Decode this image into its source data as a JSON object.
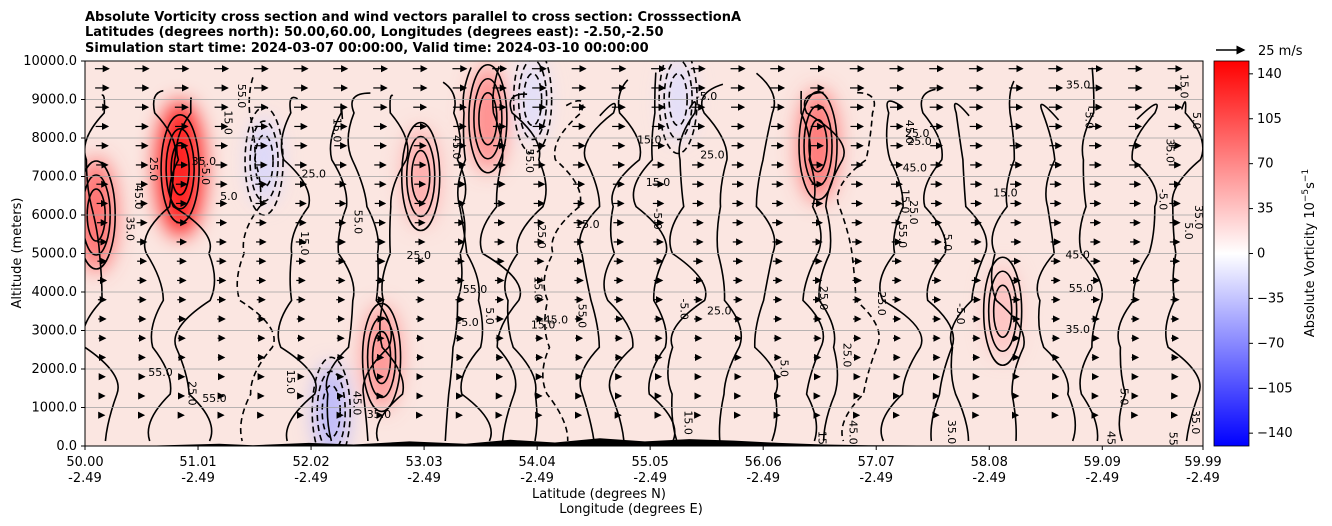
{
  "chart_data": {
    "type": "heatmap",
    "title_lines": [
      "Absolute Vorticity cross section and wind vectors parallel to cross section: CrosssectionA",
      "Latitudes (degrees north): 50.00,60.00, Longitudes (degrees east): -2.50,-2.50",
      "Simulation start time: 2024-03-07 00:00:00, Valid time: 2024-03-10 00:00:00"
    ],
    "xlabel_line1": "Latitude (degrees N)",
    "xlabel_line2": "Longitude (degrees E)",
    "ylabel": "Altitude (meters)",
    "x_ticks": [
      {
        "lat": "50.00",
        "lon": "-2.49"
      },
      {
        "lat": "51.01",
        "lon": "-2.49"
      },
      {
        "lat": "52.02",
        "lon": "-2.49"
      },
      {
        "lat": "53.03",
        "lon": "-2.49"
      },
      {
        "lat": "54.04",
        "lon": "-2.49"
      },
      {
        "lat": "55.05",
        "lon": "-2.49"
      },
      {
        "lat": "56.06",
        "lon": "-2.49"
      },
      {
        "lat": "57.07",
        "lon": "-2.49"
      },
      {
        "lat": "58.08",
        "lon": "-2.49"
      },
      {
        "lat": "59.09",
        "lon": "-2.49"
      },
      {
        "lat": "59.99",
        "lon": "-2.49"
      }
    ],
    "y_ticks": [
      "0.0",
      "1000.0",
      "2000.0",
      "3000.0",
      "4000.0",
      "5000.0",
      "6000.0",
      "7000.0",
      "8000.0",
      "9000.0",
      "10000.0"
    ],
    "xlim": [
      50.0,
      59.99
    ],
    "ylim": [
      0,
      10000
    ],
    "grid": "horizontal",
    "colorbar": {
      "label": "Absolute Vorticity 10",
      "label_exp": "−5",
      "label_unit": "s",
      "label_unit_exp": "−1",
      "ticks": [
        "140",
        "105",
        "70",
        "35",
        "0",
        "−35",
        "−70",
        "−105",
        "−140"
      ],
      "range": [
        -150,
        150
      ],
      "cmap": "bwr"
    },
    "quiver_key": "25 m/s",
    "contour_labels": [
      "25.0",
      "15.0",
      "5.0",
      "35.0",
      "-5.0",
      "45.0",
      "55.0"
    ],
    "vorticity_features": [
      {
        "lat": 50.1,
        "alt": 6000,
        "value": 95
      },
      {
        "lat": 50.85,
        "alt": 7200,
        "value": 150
      },
      {
        "lat": 51.6,
        "alt": 7400,
        "value": -25
      },
      {
        "lat": 52.65,
        "alt": 2300,
        "value": 70
      },
      {
        "lat": 53.0,
        "alt": 7000,
        "value": 55
      },
      {
        "lat": 53.6,
        "alt": 8500,
        "value": 75
      },
      {
        "lat": 54.0,
        "alt": 9000,
        "value": -20
      },
      {
        "lat": 55.3,
        "alt": 9000,
        "value": -20
      },
      {
        "lat": 56.55,
        "alt": 7800,
        "value": 90
      },
      {
        "lat": 58.2,
        "alt": 3500,
        "value": 40
      },
      {
        "lat": 52.2,
        "alt": 900,
        "value": -45
      }
    ]
  },
  "colors": {
    "background_field": "#fbe8e4",
    "positive_max": "#ff0000",
    "negative_max": "#0000ff",
    "contour": "#000000",
    "terrain": "#000000"
  }
}
